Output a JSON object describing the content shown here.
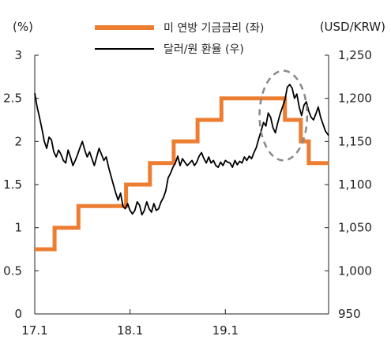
{
  "chart_data": {
    "type": "line",
    "y_left_unit": "(%)",
    "y_right_unit": "(USD/KRW)",
    "y_left_ticks": [
      "3",
      "2.5",
      "2",
      "1.5",
      "1",
      "0.5",
      "0"
    ],
    "y_left_values": [
      3,
      2.5,
      2,
      1.5,
      1,
      0.5,
      0
    ],
    "y_right_ticks": [
      "1,250",
      "1,200",
      "1,150",
      "1,100",
      "1,050",
      "1,000",
      "950"
    ],
    "y_right_values": [
      1250,
      1200,
      1150,
      1100,
      1050,
      1000,
      950
    ],
    "x_ticks": [
      {
        "label": "17.1",
        "t": 0
      },
      {
        "label": "18.1",
        "t": 12
      },
      {
        "label": "19.1",
        "t": 24
      }
    ],
    "ylim_left": [
      0,
      3
    ],
    "ylim_right": [
      950,
      1250
    ],
    "x_range_months": [
      0,
      37
    ],
    "legend": [
      "미 연방 기금금리 (좌)",
      "달러/원 환율 (우)"
    ],
    "colors": {
      "fed_rate": "#ED7D31",
      "fx": "#000000",
      "highlight": "#888888"
    },
    "series": [
      {
        "name": "미 연방 기금금리 (좌)",
        "axis": "left",
        "style": "step",
        "points": [
          [
            0,
            0.75
          ],
          [
            2.5,
            1.0
          ],
          [
            5.5,
            1.25
          ],
          [
            11.5,
            1.5
          ],
          [
            14.5,
            1.75
          ],
          [
            17.5,
            2.0
          ],
          [
            20.5,
            2.25
          ],
          [
            23.5,
            2.5
          ],
          [
            31.5,
            2.25
          ],
          [
            33.5,
            2.0
          ],
          [
            34.5,
            1.75
          ],
          [
            37,
            1.75
          ]
        ]
      },
      {
        "name": "달러/원 환율 (우)",
        "axis": "right",
        "style": "line",
        "points": [
          [
            0.0,
            1206
          ],
          [
            0.3,
            1190
          ],
          [
            0.6,
            1178
          ],
          [
            0.9,
            1165
          ],
          [
            1.2,
            1150
          ],
          [
            1.5,
            1142
          ],
          [
            1.8,
            1155
          ],
          [
            2.1,
            1152
          ],
          [
            2.4,
            1138
          ],
          [
            2.7,
            1132
          ],
          [
            3.0,
            1140
          ],
          [
            3.3,
            1135
          ],
          [
            3.6,
            1128
          ],
          [
            3.9,
            1125
          ],
          [
            4.2,
            1140
          ],
          [
            4.5,
            1132
          ],
          [
            4.8,
            1122
          ],
          [
            5.1,
            1128
          ],
          [
            5.4,
            1135
          ],
          [
            5.7,
            1143
          ],
          [
            6.0,
            1150
          ],
          [
            6.3,
            1140
          ],
          [
            6.6,
            1132
          ],
          [
            6.9,
            1138
          ],
          [
            7.2,
            1130
          ],
          [
            7.5,
            1122
          ],
          [
            7.8,
            1132
          ],
          [
            8.1,
            1142
          ],
          [
            8.4,
            1135
          ],
          [
            8.7,
            1128
          ],
          [
            9.0,
            1132
          ],
          [
            9.3,
            1120
          ],
          [
            9.6,
            1110
          ],
          [
            9.9,
            1100
          ],
          [
            10.2,
            1090
          ],
          [
            10.5,
            1082
          ],
          [
            10.8,
            1090
          ],
          [
            11.1,
            1075
          ],
          [
            11.4,
            1072
          ],
          [
            11.7,
            1078
          ],
          [
            12.0,
            1070
          ],
          [
            12.3,
            1066
          ],
          [
            12.6,
            1070
          ],
          [
            12.9,
            1080
          ],
          [
            13.2,
            1076
          ],
          [
            13.5,
            1065
          ],
          [
            13.8,
            1070
          ],
          [
            14.1,
            1080
          ],
          [
            14.4,
            1072
          ],
          [
            14.7,
            1068
          ],
          [
            15.0,
            1078
          ],
          [
            15.3,
            1070
          ],
          [
            15.6,
            1072
          ],
          [
            15.9,
            1080
          ],
          [
            16.2,
            1085
          ],
          [
            16.5,
            1093
          ],
          [
            16.8,
            1108
          ],
          [
            17.1,
            1113
          ],
          [
            17.4,
            1120
          ],
          [
            17.7,
            1125
          ],
          [
            18.0,
            1133
          ],
          [
            18.3,
            1122
          ],
          [
            18.6,
            1130
          ],
          [
            18.9,
            1126
          ],
          [
            19.2,
            1122
          ],
          [
            19.5,
            1125
          ],
          [
            19.8,
            1128
          ],
          [
            20.1,
            1122
          ],
          [
            20.4,
            1126
          ],
          [
            20.7,
            1133
          ],
          [
            21.0,
            1137
          ],
          [
            21.3,
            1130
          ],
          [
            21.6,
            1125
          ],
          [
            21.9,
            1132
          ],
          [
            22.2,
            1125
          ],
          [
            22.5,
            1128
          ],
          [
            22.8,
            1122
          ],
          [
            23.1,
            1120
          ],
          [
            23.4,
            1126
          ],
          [
            23.7,
            1122
          ],
          [
            24.0,
            1128
          ],
          [
            24.3,
            1126
          ],
          [
            24.6,
            1125
          ],
          [
            24.9,
            1120
          ],
          [
            25.2,
            1128
          ],
          [
            25.5,
            1123
          ],
          [
            25.8,
            1127
          ],
          [
            26.1,
            1125
          ],
          [
            26.4,
            1132
          ],
          [
            26.7,
            1128
          ],
          [
            27.0,
            1133
          ],
          [
            27.3,
            1130
          ],
          [
            27.6,
            1137
          ],
          [
            27.9,
            1143
          ],
          [
            28.2,
            1153
          ],
          [
            28.5,
            1162
          ],
          [
            28.8,
            1172
          ],
          [
            29.1,
            1168
          ],
          [
            29.4,
            1183
          ],
          [
            29.7,
            1178
          ],
          [
            30.0,
            1166
          ],
          [
            30.3,
            1160
          ],
          [
            30.6,
            1172
          ],
          [
            30.9,
            1182
          ],
          [
            31.2,
            1190
          ],
          [
            31.5,
            1198
          ],
          [
            31.8,
            1213
          ],
          [
            32.1,
            1216
          ],
          [
            32.4,
            1212
          ],
          [
            32.7,
            1200
          ],
          [
            33.0,
            1205
          ],
          [
            33.3,
            1190
          ],
          [
            33.6,
            1180
          ],
          [
            33.9,
            1192
          ],
          [
            34.2,
            1196
          ],
          [
            34.5,
            1185
          ],
          [
            34.8,
            1178
          ],
          [
            35.1,
            1175
          ],
          [
            35.4,
            1182
          ],
          [
            35.7,
            1190
          ],
          [
            36.0,
            1178
          ],
          [
            36.3,
            1170
          ],
          [
            36.6,
            1162
          ],
          [
            37.0,
            1157
          ]
        ]
      }
    ],
    "highlight_ellipse": {
      "center": [
        31.3,
        1180
      ],
      "rx_months": 3.0,
      "ry_krw": 52
    },
    "grid": false,
    "legend_position": "top-center"
  }
}
